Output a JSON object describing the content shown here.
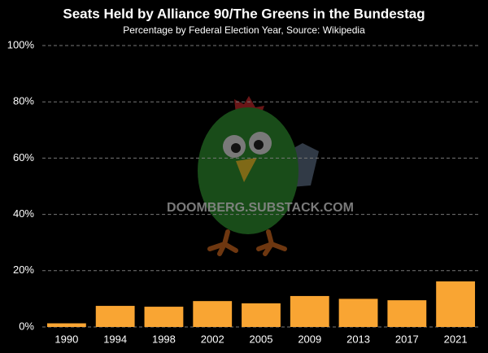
{
  "chart_data": {
    "type": "bar",
    "title": "Seats Held by Alliance 90/The Greens in the Bundestag",
    "subtitle": "Percentage by Federal Election Year, Source: Wikipedia",
    "watermark": "DOOMBERG.SUBSTACK.COM",
    "categories": [
      "1990",
      "1994",
      "1998",
      "2002",
      "2005",
      "2009",
      "2013",
      "2017",
      "2021"
    ],
    "values": [
      1.3,
      7.5,
      7.2,
      9.2,
      8.4,
      11.0,
      10.0,
      9.5,
      16.2
    ],
    "color": "#f9a533",
    "ylim": [
      0,
      100
    ],
    "yticks": [
      {
        "value": 0,
        "label": "0%"
      },
      {
        "value": 20,
        "label": "20%"
      },
      {
        "value": 40,
        "label": "40%"
      },
      {
        "value": 60,
        "label": "60%"
      },
      {
        "value": 80,
        "label": "80%"
      },
      {
        "value": 100,
        "label": "100%"
      }
    ],
    "grid": true
  }
}
